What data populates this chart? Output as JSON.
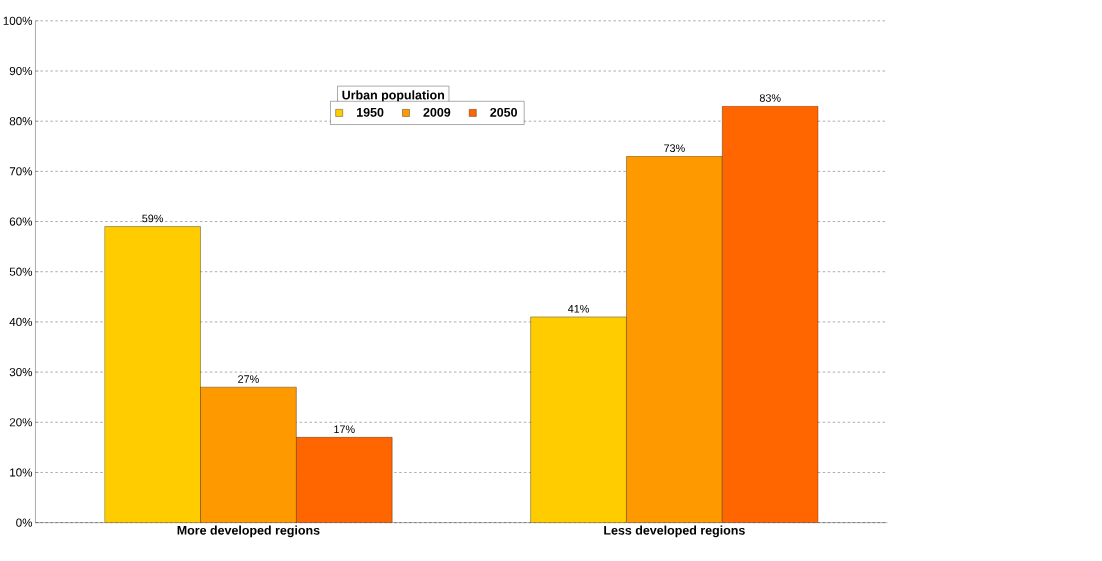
{
  "chart_data": {
    "type": "bar",
    "categories": [
      "More developed regions",
      "Less developed regions"
    ],
    "legend_title": "Urban population",
    "series": [
      {
        "name": "1950",
        "color": "#ffcc00",
        "values": [
          59,
          41
        ],
        "value_labels": [
          "59%",
          "41%"
        ]
      },
      {
        "name": "2009",
        "color": "#ff9900",
        "values": [
          27,
          73
        ],
        "value_labels": [
          "27%",
          "73%"
        ]
      },
      {
        "name": "2050",
        "color": "#ff6600",
        "values": [
          17,
          83
        ],
        "value_labels": [
          "17%",
          "83%"
        ]
      }
    ],
    "ylim": [
      0,
      100
    ],
    "yticks": [
      {
        "value": 0,
        "label": "0%"
      },
      {
        "value": 10,
        "label": "10%"
      },
      {
        "value": 20,
        "label": "20%"
      },
      {
        "value": 30,
        "label": "30%"
      },
      {
        "value": 40,
        "label": "40%"
      },
      {
        "value": 50,
        "label": "50%"
      },
      {
        "value": 60,
        "label": "60%"
      },
      {
        "value": 70,
        "label": "70%"
      },
      {
        "value": 80,
        "label": "80%"
      },
      {
        "value": 90,
        "label": "90%"
      },
      {
        "value": 100,
        "label": "100%"
      }
    ],
    "grid": "y",
    "legend": "top"
  }
}
